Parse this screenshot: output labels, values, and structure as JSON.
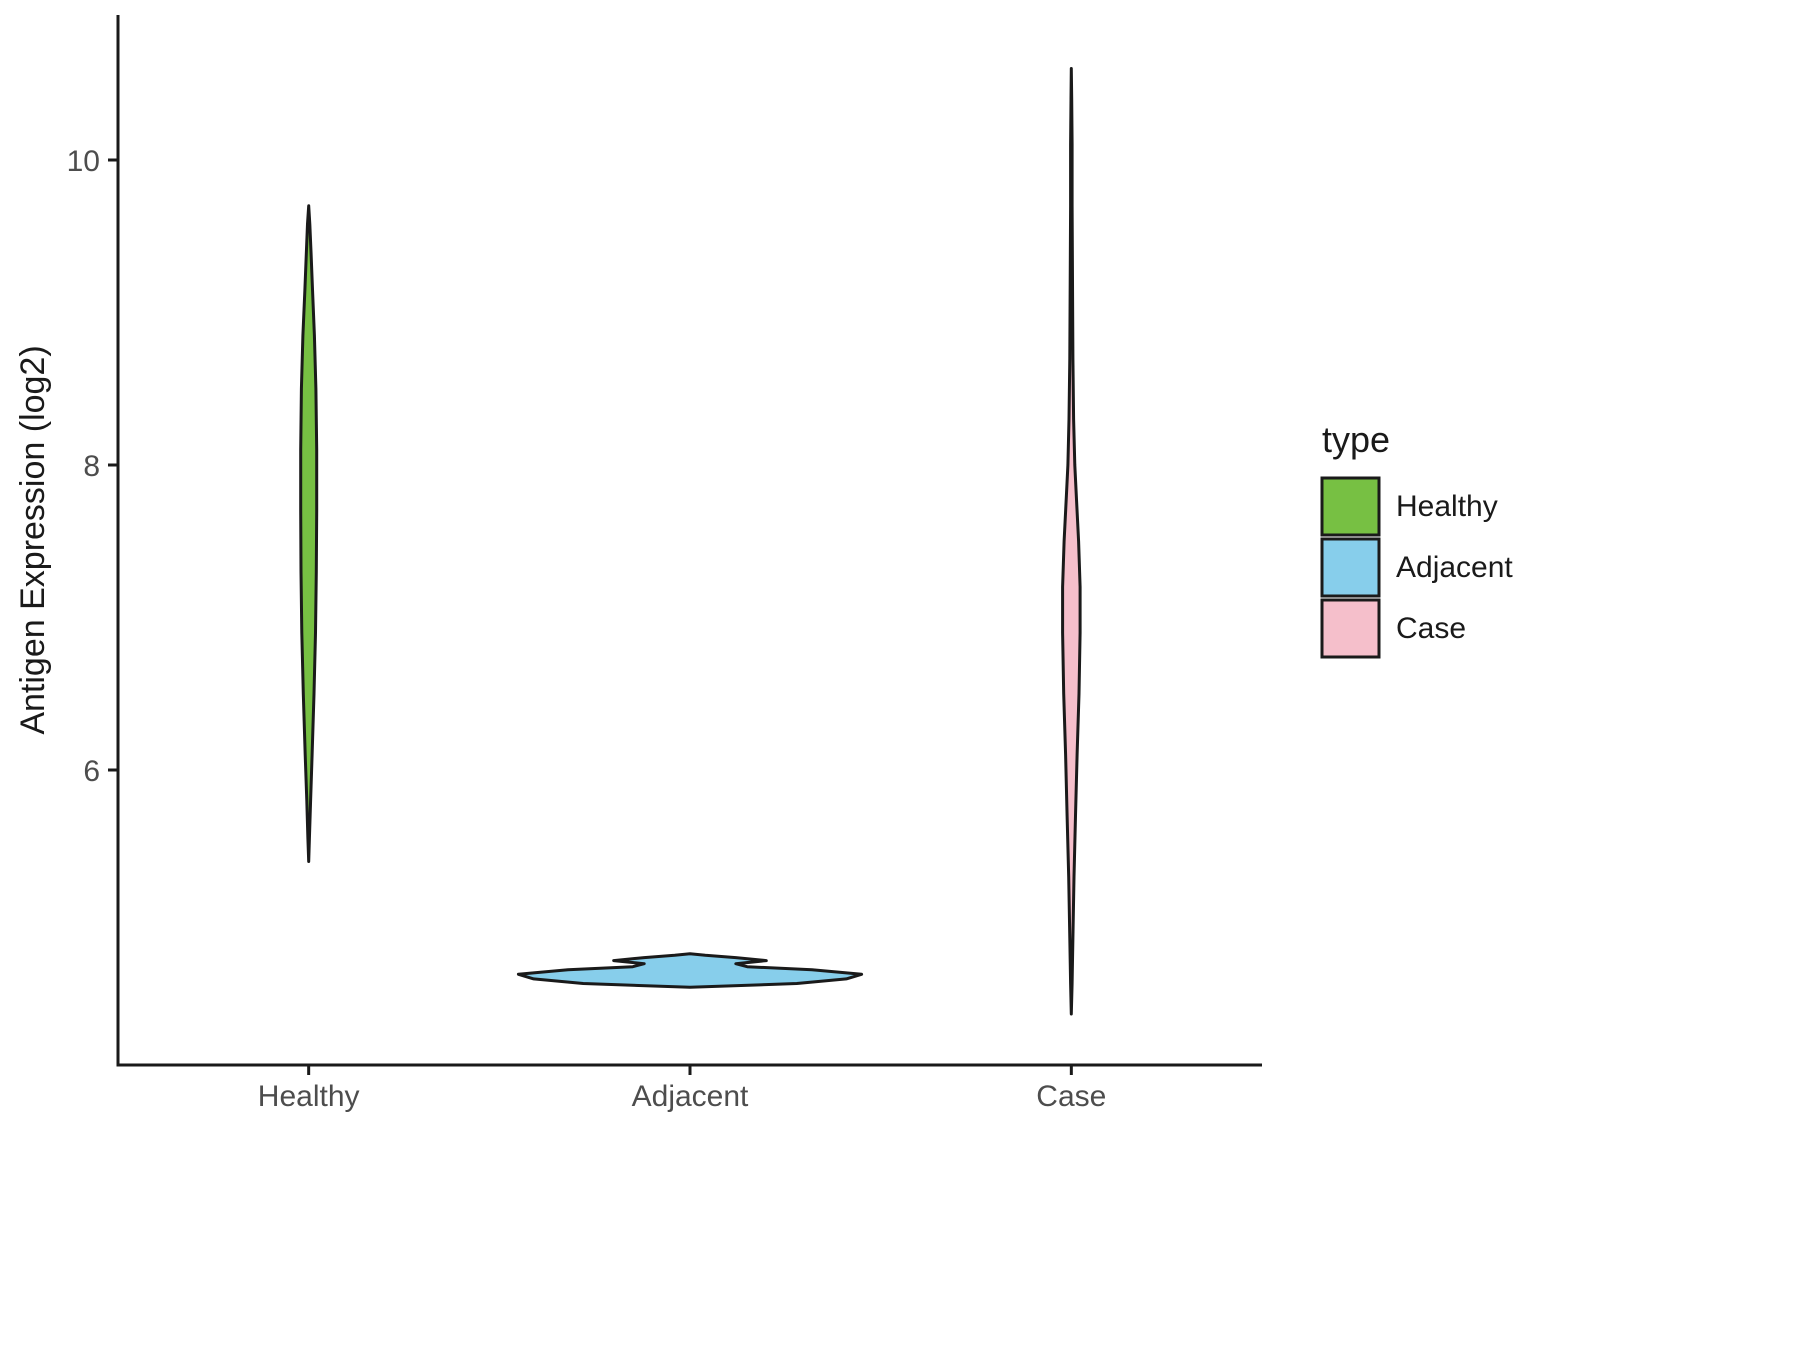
{
  "chart_data": {
    "type": "violin",
    "title": "",
    "xlabel": "",
    "ylabel": "Antigen Expression (log2)",
    "categories": [
      "Healthy",
      "Adjacent",
      "Case"
    ],
    "y_ticks": [
      6,
      8,
      10
    ],
    "ylim": [
      4.05,
      10.95
    ],
    "grid": "off",
    "theme": "classic",
    "background": "#ffffff",
    "axis_color": "#1a1a1a",
    "legend": {
      "title": "type",
      "position": "right",
      "entries": [
        {
          "label": "Healthy",
          "color": "#77C043"
        },
        {
          "label": "Adjacent",
          "color": "#87CEEB"
        },
        {
          "label": "Case",
          "color": "#F5BFCB"
        }
      ]
    },
    "series": [
      {
        "name": "Healthy",
        "color": "#77C043",
        "outline": "#1a1a1a",
        "value_range": [
          5.4,
          9.7
        ],
        "profile": [
          [
            5.4,
            0.0
          ],
          [
            5.55,
            0.002
          ],
          [
            5.8,
            0.005
          ],
          [
            6.1,
            0.009
          ],
          [
            6.5,
            0.014
          ],
          [
            6.9,
            0.018
          ],
          [
            7.3,
            0.02
          ],
          [
            7.7,
            0.021
          ],
          [
            8.1,
            0.021
          ],
          [
            8.5,
            0.019
          ],
          [
            8.85,
            0.015
          ],
          [
            9.15,
            0.01
          ],
          [
            9.4,
            0.006
          ],
          [
            9.58,
            0.003
          ],
          [
            9.7,
            0.0
          ]
        ]
      },
      {
        "name": "Adjacent",
        "color": "#87CEEB",
        "outline": "#1a1a1a",
        "value_range": [
          4.58,
          4.8
        ],
        "profile": [
          [
            4.575,
            0.0
          ],
          [
            4.6,
            0.28
          ],
          [
            4.63,
            0.41
          ],
          [
            4.66,
            0.45
          ],
          [
            4.69,
            0.32
          ],
          [
            4.71,
            0.15
          ],
          [
            4.73,
            0.12
          ],
          [
            4.75,
            0.2
          ],
          [
            4.77,
            0.12
          ],
          [
            4.785,
            0.04
          ],
          [
            4.795,
            0.0
          ]
        ]
      },
      {
        "name": "Case",
        "color": "#F5BFCB",
        "outline": "#1a1a1a",
        "value_range": [
          4.4,
          10.6
        ],
        "profile": [
          [
            4.4,
            0.0
          ],
          [
            4.6,
            0.002
          ],
          [
            4.9,
            0.004
          ],
          [
            5.3,
            0.007
          ],
          [
            5.7,
            0.011
          ],
          [
            6.1,
            0.015
          ],
          [
            6.5,
            0.02
          ],
          [
            6.9,
            0.023
          ],
          [
            7.2,
            0.023
          ],
          [
            7.5,
            0.019
          ],
          [
            7.8,
            0.013
          ],
          [
            8.0,
            0.009
          ],
          [
            8.3,
            0.006
          ],
          [
            8.7,
            0.004
          ],
          [
            9.2,
            0.003
          ],
          [
            9.7,
            0.002
          ],
          [
            10.1,
            0.002
          ],
          [
            10.4,
            0.001
          ],
          [
            10.6,
            0.0
          ]
        ]
      }
    ]
  }
}
